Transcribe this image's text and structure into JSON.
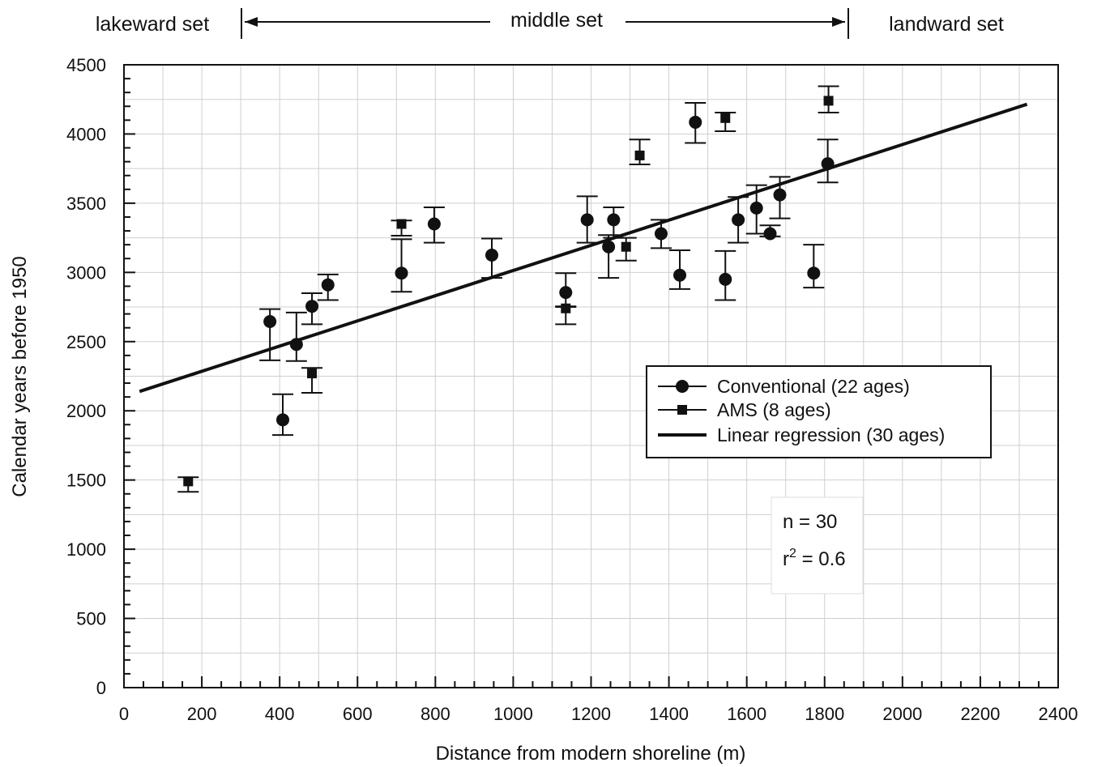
{
  "chart_data": {
    "type": "scatter",
    "title": "",
    "xlabel": "Distance from modern shoreline (m)",
    "ylabel": "Calendar years before 1950",
    "xlim": [
      0,
      2400
    ],
    "ylim": [
      0,
      4500
    ],
    "x_ticks": [
      0,
      200,
      400,
      600,
      800,
      1000,
      1200,
      1400,
      1600,
      1800,
      2000,
      2200,
      2400
    ],
    "y_ticks": [
      0,
      500,
      1000,
      1500,
      2000,
      2500,
      3000,
      3500,
      4000,
      4500
    ],
    "grid": true,
    "legend_position": "right",
    "top_sets": {
      "lakeward": "lakeward set",
      "middle": "middle set",
      "landward": "landward set",
      "middle_range": [
        300,
        1860
      ]
    },
    "series": [
      {
        "name": "Conventional (22 ages)",
        "marker": "circle",
        "points": [
          {
            "x": 375,
            "y": 2645,
            "lo": 2365,
            "hi": 2735
          },
          {
            "x": 408,
            "y": 1935,
            "lo": 1825,
            "hi": 2120
          },
          {
            "x": 443,
            "y": 2480,
            "lo": 2360,
            "hi": 2710
          },
          {
            "x": 483,
            "y": 2755,
            "lo": 2625,
            "hi": 2850
          },
          {
            "x": 524,
            "y": 2910,
            "lo": 2800,
            "hi": 2985
          },
          {
            "x": 713,
            "y": 2995,
            "lo": 2860,
            "hi": 3240
          },
          {
            "x": 797,
            "y": 3350,
            "lo": 3215,
            "hi": 3470
          },
          {
            "x": 945,
            "y": 3125,
            "lo": 2960,
            "hi": 3245
          },
          {
            "x": 1135,
            "y": 2855,
            "lo": 2750,
            "hi": 2995
          },
          {
            "x": 1190,
            "y": 3380,
            "lo": 3215,
            "hi": 3550
          },
          {
            "x": 1245,
            "y": 3185,
            "lo": 2960,
            "hi": 3270
          },
          {
            "x": 1258,
            "y": 3380,
            "lo": 3250,
            "hi": 3470
          },
          {
            "x": 1380,
            "y": 3280,
            "lo": 3175,
            "hi": 3380
          },
          {
            "x": 1428,
            "y": 2980,
            "lo": 2880,
            "hi": 3160
          },
          {
            "x": 1468,
            "y": 4085,
            "lo": 3935,
            "hi": 4225
          },
          {
            "x": 1545,
            "y": 2950,
            "lo": 2800,
            "hi": 3155
          },
          {
            "x": 1578,
            "y": 3380,
            "lo": 3215,
            "hi": 3545
          },
          {
            "x": 1625,
            "y": 3465,
            "lo": 3280,
            "hi": 3630
          },
          {
            "x": 1660,
            "y": 3280,
            "lo": 3260,
            "hi": 3340
          },
          {
            "x": 1685,
            "y": 3560,
            "lo": 3390,
            "hi": 3690
          },
          {
            "x": 1772,
            "y": 2995,
            "lo": 2890,
            "hi": 3200
          },
          {
            "x": 1808,
            "y": 3785,
            "lo": 3650,
            "hi": 3960
          }
        ]
      },
      {
        "name": "AMS (8 ages)",
        "marker": "square",
        "points": [
          {
            "x": 165,
            "y": 1490,
            "lo": 1415,
            "hi": 1520
          },
          {
            "x": 483,
            "y": 2270,
            "lo": 2130,
            "hi": 2310
          },
          {
            "x": 713,
            "y": 3350,
            "lo": 3265,
            "hi": 3375
          },
          {
            "x": 1135,
            "y": 2740,
            "lo": 2625,
            "hi": 2755
          },
          {
            "x": 1290,
            "y": 3185,
            "lo": 3085,
            "hi": 3250
          },
          {
            "x": 1325,
            "y": 3845,
            "lo": 3780,
            "hi": 3960
          },
          {
            "x": 1545,
            "y": 4115,
            "lo": 4020,
            "hi": 4155
          },
          {
            "x": 1810,
            "y": 4240,
            "lo": 4155,
            "hi": 4345
          }
        ]
      },
      {
        "name": "Linear regression (30 ages)",
        "type": "line",
        "x": [
          40,
          2320
        ],
        "y": [
          2140,
          4215
        ]
      }
    ],
    "annotations": {
      "n": "n = 30",
      "r2_prefix": "r",
      "r2_sup": "2",
      "r2_suffix": " = 0.6"
    }
  }
}
